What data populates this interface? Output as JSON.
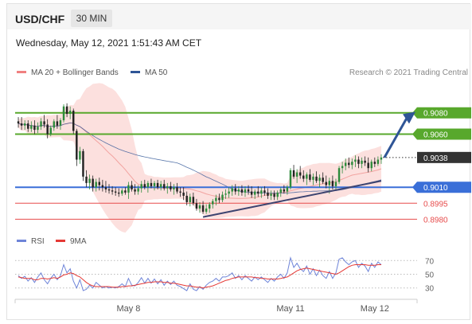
{
  "header": {
    "symbol": "USD/CHF",
    "timeframe": "30 MIN",
    "timestamp": "Wednesday, May 12, 2021 1:51:43 AM CET"
  },
  "legend": {
    "items": [
      {
        "label": "MA 20 + Bollinger Bands",
        "color": "#f08080"
      },
      {
        "label": "MA 50",
        "color": "#2f5596"
      }
    ],
    "credit": "Research © 2021 Trading Central"
  },
  "rsi_legend": {
    "items": [
      {
        "label": "RSI",
        "color": "#6e84d8"
      },
      {
        "label": "9MA",
        "color": "#e53935"
      }
    ]
  },
  "levels": [
    {
      "value": 0.908,
      "label": "0.9080",
      "kind": "resistance",
      "color": "#58a82c"
    },
    {
      "value": 0.906,
      "label": "0.9060",
      "kind": "resistance",
      "color": "#58a82c"
    },
    {
      "value": 0.9038,
      "label": "0.9038",
      "kind": "last",
      "color": "#333333"
    },
    {
      "value": 0.901,
      "label": "0.9010",
      "kind": "pivot",
      "color": "#3a6fd8"
    },
    {
      "value": 0.8995,
      "label": "0.8995",
      "kind": "support",
      "color": "#e74c4c"
    },
    {
      "value": 0.898,
      "label": "0.8980",
      "kind": "support",
      "color": "#e74c4c"
    }
  ],
  "chart_data": [
    {
      "type": "candlestick",
      "x_ticks": [
        "May 8",
        "May 11",
        "May 12"
      ],
      "y_range": [
        0.8975,
        0.91
      ],
      "ohlc": [
        [
          0.9072,
          0.9076,
          0.9066,
          0.907
        ],
        [
          0.907,
          0.9076,
          0.9064,
          0.9068
        ],
        [
          0.9068,
          0.9073,
          0.9064,
          0.907
        ],
        [
          0.907,
          0.9073,
          0.9062,
          0.9065
        ],
        [
          0.9065,
          0.9072,
          0.9062,
          0.9068
        ],
        [
          0.9068,
          0.9073,
          0.906,
          0.9064
        ],
        [
          0.9064,
          0.9071,
          0.9061,
          0.9067
        ],
        [
          0.9067,
          0.9075,
          0.9064,
          0.9072
        ],
        [
          0.9072,
          0.9078,
          0.9066,
          0.9069
        ],
        [
          0.9069,
          0.9074,
          0.9056,
          0.906
        ],
        [
          0.906,
          0.9068,
          0.9058,
          0.9066
        ],
        [
          0.9066,
          0.9074,
          0.9063,
          0.9072
        ],
        [
          0.9072,
          0.9078,
          0.9065,
          0.9068
        ],
        [
          0.9068,
          0.9075,
          0.9064,
          0.9073
        ],
        [
          0.9073,
          0.9088,
          0.9071,
          0.9086
        ],
        [
          0.9086,
          0.9089,
          0.9076,
          0.9079
        ],
        [
          0.9079,
          0.9086,
          0.9074,
          0.9082
        ],
        [
          0.9082,
          0.9084,
          0.906,
          0.9063
        ],
        [
          0.9063,
          0.9065,
          0.903,
          0.9036
        ],
        [
          0.9036,
          0.9048,
          0.9032,
          0.9044
        ],
        [
          0.9044,
          0.9046,
          0.9016,
          0.902
        ],
        [
          0.902,
          0.9026,
          0.901,
          0.9014
        ],
        [
          0.9014,
          0.9022,
          0.9008,
          0.9018
        ],
        [
          0.9018,
          0.9021,
          0.9006,
          0.901
        ],
        [
          0.901,
          0.9018,
          0.9006,
          0.9015
        ],
        [
          0.9015,
          0.9019,
          0.9007,
          0.9012
        ],
        [
          0.9012,
          0.9017,
          0.9006,
          0.901
        ],
        [
          0.901,
          0.9016,
          0.9005,
          0.9008
        ],
        [
          0.9008,
          0.9013,
          0.9004,
          0.9007
        ],
        [
          0.9007,
          0.9011,
          0.9003,
          0.9006
        ],
        [
          0.9006,
          0.901,
          0.9002,
          0.9005
        ],
        [
          0.9005,
          0.9009,
          0.9001,
          0.9004
        ],
        [
          0.9004,
          0.9009,
          0.9002,
          0.9007
        ],
        [
          0.9007,
          0.901,
          0.9003,
          0.9005
        ],
        [
          0.9005,
          0.9015,
          0.8999,
          0.9012
        ],
        [
          0.9012,
          0.9016,
          0.9006,
          0.9008
        ],
        [
          0.9008,
          0.9013,
          0.9003,
          0.9006
        ],
        [
          0.9006,
          0.9012,
          0.9003,
          0.9009
        ],
        [
          0.9009,
          0.9016,
          0.9005,
          0.9013
        ],
        [
          0.9013,
          0.9017,
          0.9008,
          0.901
        ],
        [
          0.901,
          0.9016,
          0.9005,
          0.9014
        ],
        [
          0.9014,
          0.9018,
          0.9009,
          0.9011
        ],
        [
          0.9011,
          0.9016,
          0.9007,
          0.9014
        ],
        [
          0.9014,
          0.9017,
          0.9008,
          0.901
        ],
        [
          0.901,
          0.9016,
          0.9007,
          0.9013
        ],
        [
          0.9013,
          0.9017,
          0.9007,
          0.9009
        ],
        [
          0.9009,
          0.9014,
          0.9004,
          0.9011
        ],
        [
          0.9011,
          0.9015,
          0.9006,
          0.9008
        ],
        [
          0.9008,
          0.9013,
          0.9003,
          0.901
        ],
        [
          0.901,
          0.9014,
          0.9004,
          0.9006
        ],
        [
          0.9006,
          0.901,
          0.9001,
          0.9005
        ],
        [
          0.9005,
          0.901,
          0.8998,
          0.9002
        ],
        [
          0.9002,
          0.9006,
          0.8993,
          0.8996
        ],
        [
          0.8996,
          0.9004,
          0.8992,
          0.9001
        ],
        [
          0.9001,
          0.9005,
          0.8993,
          0.8995
        ],
        [
          0.8995,
          0.8999,
          0.8988,
          0.899
        ],
        [
          0.899,
          0.8996,
          0.8986,
          0.8993
        ],
        [
          0.8993,
          0.8997,
          0.8985,
          0.8987
        ],
        [
          0.8987,
          0.8994,
          0.8985,
          0.899
        ],
        [
          0.899,
          0.8996,
          0.8986,
          0.8994
        ],
        [
          0.8994,
          0.8999,
          0.899,
          0.8997
        ],
        [
          0.8997,
          0.9003,
          0.8993,
          0.9
        ],
        [
          0.9,
          0.9004,
          0.8995,
          0.8998
        ],
        [
          0.8998,
          0.9006,
          0.8996,
          0.9003
        ],
        [
          0.9003,
          0.9008,
          0.8999,
          0.9004
        ],
        [
          0.9004,
          0.901,
          0.9,
          0.9006
        ],
        [
          0.9006,
          0.9012,
          0.9002,
          0.9009
        ],
        [
          0.9009,
          0.9013,
          0.9003,
          0.9006
        ],
        [
          0.9006,
          0.9011,
          0.9002,
          0.9008
        ],
        [
          0.9008,
          0.9012,
          0.9002,
          0.9005
        ],
        [
          0.9005,
          0.9011,
          0.9001,
          0.9008
        ],
        [
          0.9008,
          0.9012,
          0.9003,
          0.9006
        ],
        [
          0.9006,
          0.9011,
          0.9,
          0.9003
        ],
        [
          0.9003,
          0.9008,
          0.8999,
          0.9006
        ],
        [
          0.9006,
          0.9011,
          0.9001,
          0.9004
        ],
        [
          0.9004,
          0.901,
          0.9,
          0.9007
        ],
        [
          0.9007,
          0.9011,
          0.9002,
          0.9005
        ],
        [
          0.9005,
          0.9009,
          0.8999,
          0.9002
        ],
        [
          0.9002,
          0.9007,
          0.8998,
          0.9004
        ],
        [
          0.9004,
          0.9007,
          0.8998,
          0.9001
        ],
        [
          0.9001,
          0.9007,
          0.8998,
          0.9005
        ],
        [
          0.9005,
          0.901,
          0.9001,
          0.9008
        ],
        [
          0.9008,
          0.9012,
          0.9004,
          0.9006
        ],
        [
          0.9006,
          0.9012,
          0.9003,
          0.901
        ],
        [
          0.901,
          0.9028,
          0.9008,
          0.9026
        ],
        [
          0.9026,
          0.9031,
          0.9018,
          0.902
        ],
        [
          0.902,
          0.9027,
          0.9014,
          0.9024
        ],
        [
          0.9024,
          0.903,
          0.9018,
          0.9021
        ],
        [
          0.9021,
          0.9026,
          0.9015,
          0.9018
        ],
        [
          0.9018,
          0.9024,
          0.9012,
          0.9022
        ],
        [
          0.9022,
          0.9027,
          0.9015,
          0.9017
        ],
        [
          0.9017,
          0.9023,
          0.9012,
          0.902
        ],
        [
          0.902,
          0.9025,
          0.9014,
          0.9016
        ],
        [
          0.9016,
          0.9022,
          0.901,
          0.9019
        ],
        [
          0.9019,
          0.9024,
          0.9013,
          0.9015
        ],
        [
          0.9015,
          0.9021,
          0.9009,
          0.9012
        ],
        [
          0.9012,
          0.9019,
          0.9004,
          0.9016
        ],
        [
          0.9016,
          0.9021,
          0.9008,
          0.9011
        ],
        [
          0.9011,
          0.9018,
          0.9007,
          0.9015
        ],
        [
          0.9015,
          0.903,
          0.9013,
          0.9028
        ],
        [
          0.9028,
          0.9034,
          0.9023,
          0.903
        ],
        [
          0.903,
          0.9037,
          0.9026,
          0.9033
        ],
        [
          0.9033,
          0.9038,
          0.9028,
          0.9031
        ],
        [
          0.9031,
          0.9037,
          0.9027,
          0.9034
        ],
        [
          0.9034,
          0.904,
          0.9029,
          0.9036
        ],
        [
          0.9036,
          0.9039,
          0.9028,
          0.9032
        ],
        [
          0.9032,
          0.9038,
          0.9028,
          0.9035
        ],
        [
          0.9035,
          0.9039,
          0.903,
          0.9033
        ],
        [
          0.9033,
          0.9038,
          0.9024,
          0.9028
        ],
        [
          0.9028,
          0.9036,
          0.9025,
          0.9034
        ],
        [
          0.9034,
          0.9038,
          0.9029,
          0.9032
        ],
        [
          0.9032,
          0.9039,
          0.903,
          0.9036
        ],
        [
          0.9036,
          0.9041,
          0.9032,
          0.9038
        ]
      ]
    },
    {
      "type": "line",
      "name": "RSI",
      "y_ticks": [
        70,
        50,
        30
      ],
      "series": [
        {
          "name": "RSI",
          "values": [
            48,
            44,
            47,
            40,
            45,
            38,
            46,
            52,
            42,
            36,
            44,
            50,
            42,
            48,
            64,
            52,
            58,
            40,
            30,
            42,
            26,
            28,
            34,
            30,
            38,
            34,
            30,
            32,
            30,
            31,
            30,
            32,
            36,
            32,
            44,
            34,
            33,
            38,
            45,
            37,
            44,
            37,
            43,
            36,
            42,
            34,
            40,
            35,
            40,
            34,
            32,
            29,
            26,
            36,
            28,
            26,
            32,
            28,
            34,
            38,
            40,
            44,
            40,
            46,
            46,
            48,
            52,
            44,
            48,
            42,
            48,
            44,
            40,
            46,
            42,
            46,
            42,
            38,
            44,
            40,
            46,
            50,
            44,
            52,
            74,
            60,
            66,
            58,
            54,
            62,
            50,
            58,
            48,
            56,
            48,
            44,
            54,
            44,
            52,
            72,
            74,
            68,
            64,
            68,
            70,
            60,
            66,
            62,
            54,
            66,
            60,
            68,
            64
          ]
        },
        {
          "name": "9MA",
          "values": [
            46,
            45,
            44,
            44,
            44,
            42,
            42,
            44,
            44,
            43,
            44,
            45,
            44,
            46,
            49,
            50,
            52,
            51,
            48,
            46,
            42,
            38,
            35,
            33,
            32,
            32,
            32,
            32,
            32,
            31,
            31,
            31,
            32,
            32,
            33,
            33,
            34,
            35,
            36,
            37,
            38,
            38,
            39,
            39,
            39,
            38,
            38,
            37,
            37,
            36,
            35,
            34,
            33,
            33,
            32,
            31,
            31,
            30,
            31,
            32,
            33,
            35,
            37,
            39,
            41,
            42,
            44,
            45,
            46,
            46,
            46,
            46,
            46,
            45,
            45,
            44,
            44,
            43,
            43,
            43,
            43,
            44,
            45,
            46,
            49,
            52,
            55,
            57,
            58,
            59,
            58,
            57,
            56,
            55,
            54,
            53,
            52,
            51,
            50,
            52,
            55,
            58,
            61,
            63,
            64,
            64,
            64,
            64,
            63,
            63,
            63,
            64,
            64
          ]
        }
      ]
    }
  ]
}
